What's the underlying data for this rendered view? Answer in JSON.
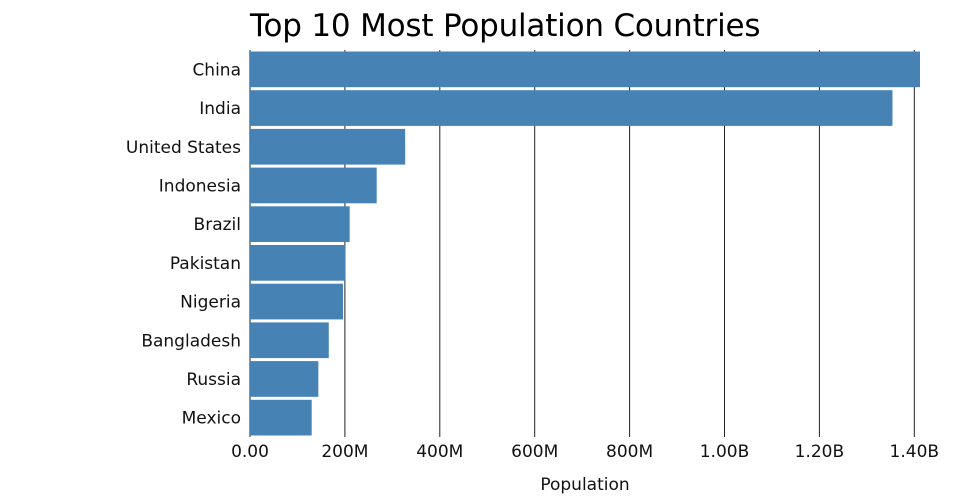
{
  "chart_data": {
    "type": "bar",
    "orientation": "horizontal",
    "title": "Top 10 Most Population Countries",
    "xlabel": "Population",
    "ylabel": "",
    "categories": [
      "China",
      "India",
      "United States",
      "Indonesia",
      "Brazil",
      "Pakistan",
      "Nigeria",
      "Bangladesh",
      "Russia",
      "Mexico"
    ],
    "values": [
      1412000000,
      1354000000,
      327000000,
      267000000,
      210000000,
      201000000,
      196000000,
      166000000,
      144000000,
      130000000
    ],
    "xlim": [
      0,
      1412000000
    ],
    "x_ticks": [
      0,
      200000000,
      400000000,
      600000000,
      800000000,
      1000000000,
      1200000000,
      1400000000
    ],
    "x_tick_labels": [
      "0.00",
      "200M",
      "400M",
      "600M",
      "800M",
      "1.00B",
      "1.20B",
      "1.40B"
    ],
    "grid": "vertical",
    "bar_color": "#4682b4"
  }
}
